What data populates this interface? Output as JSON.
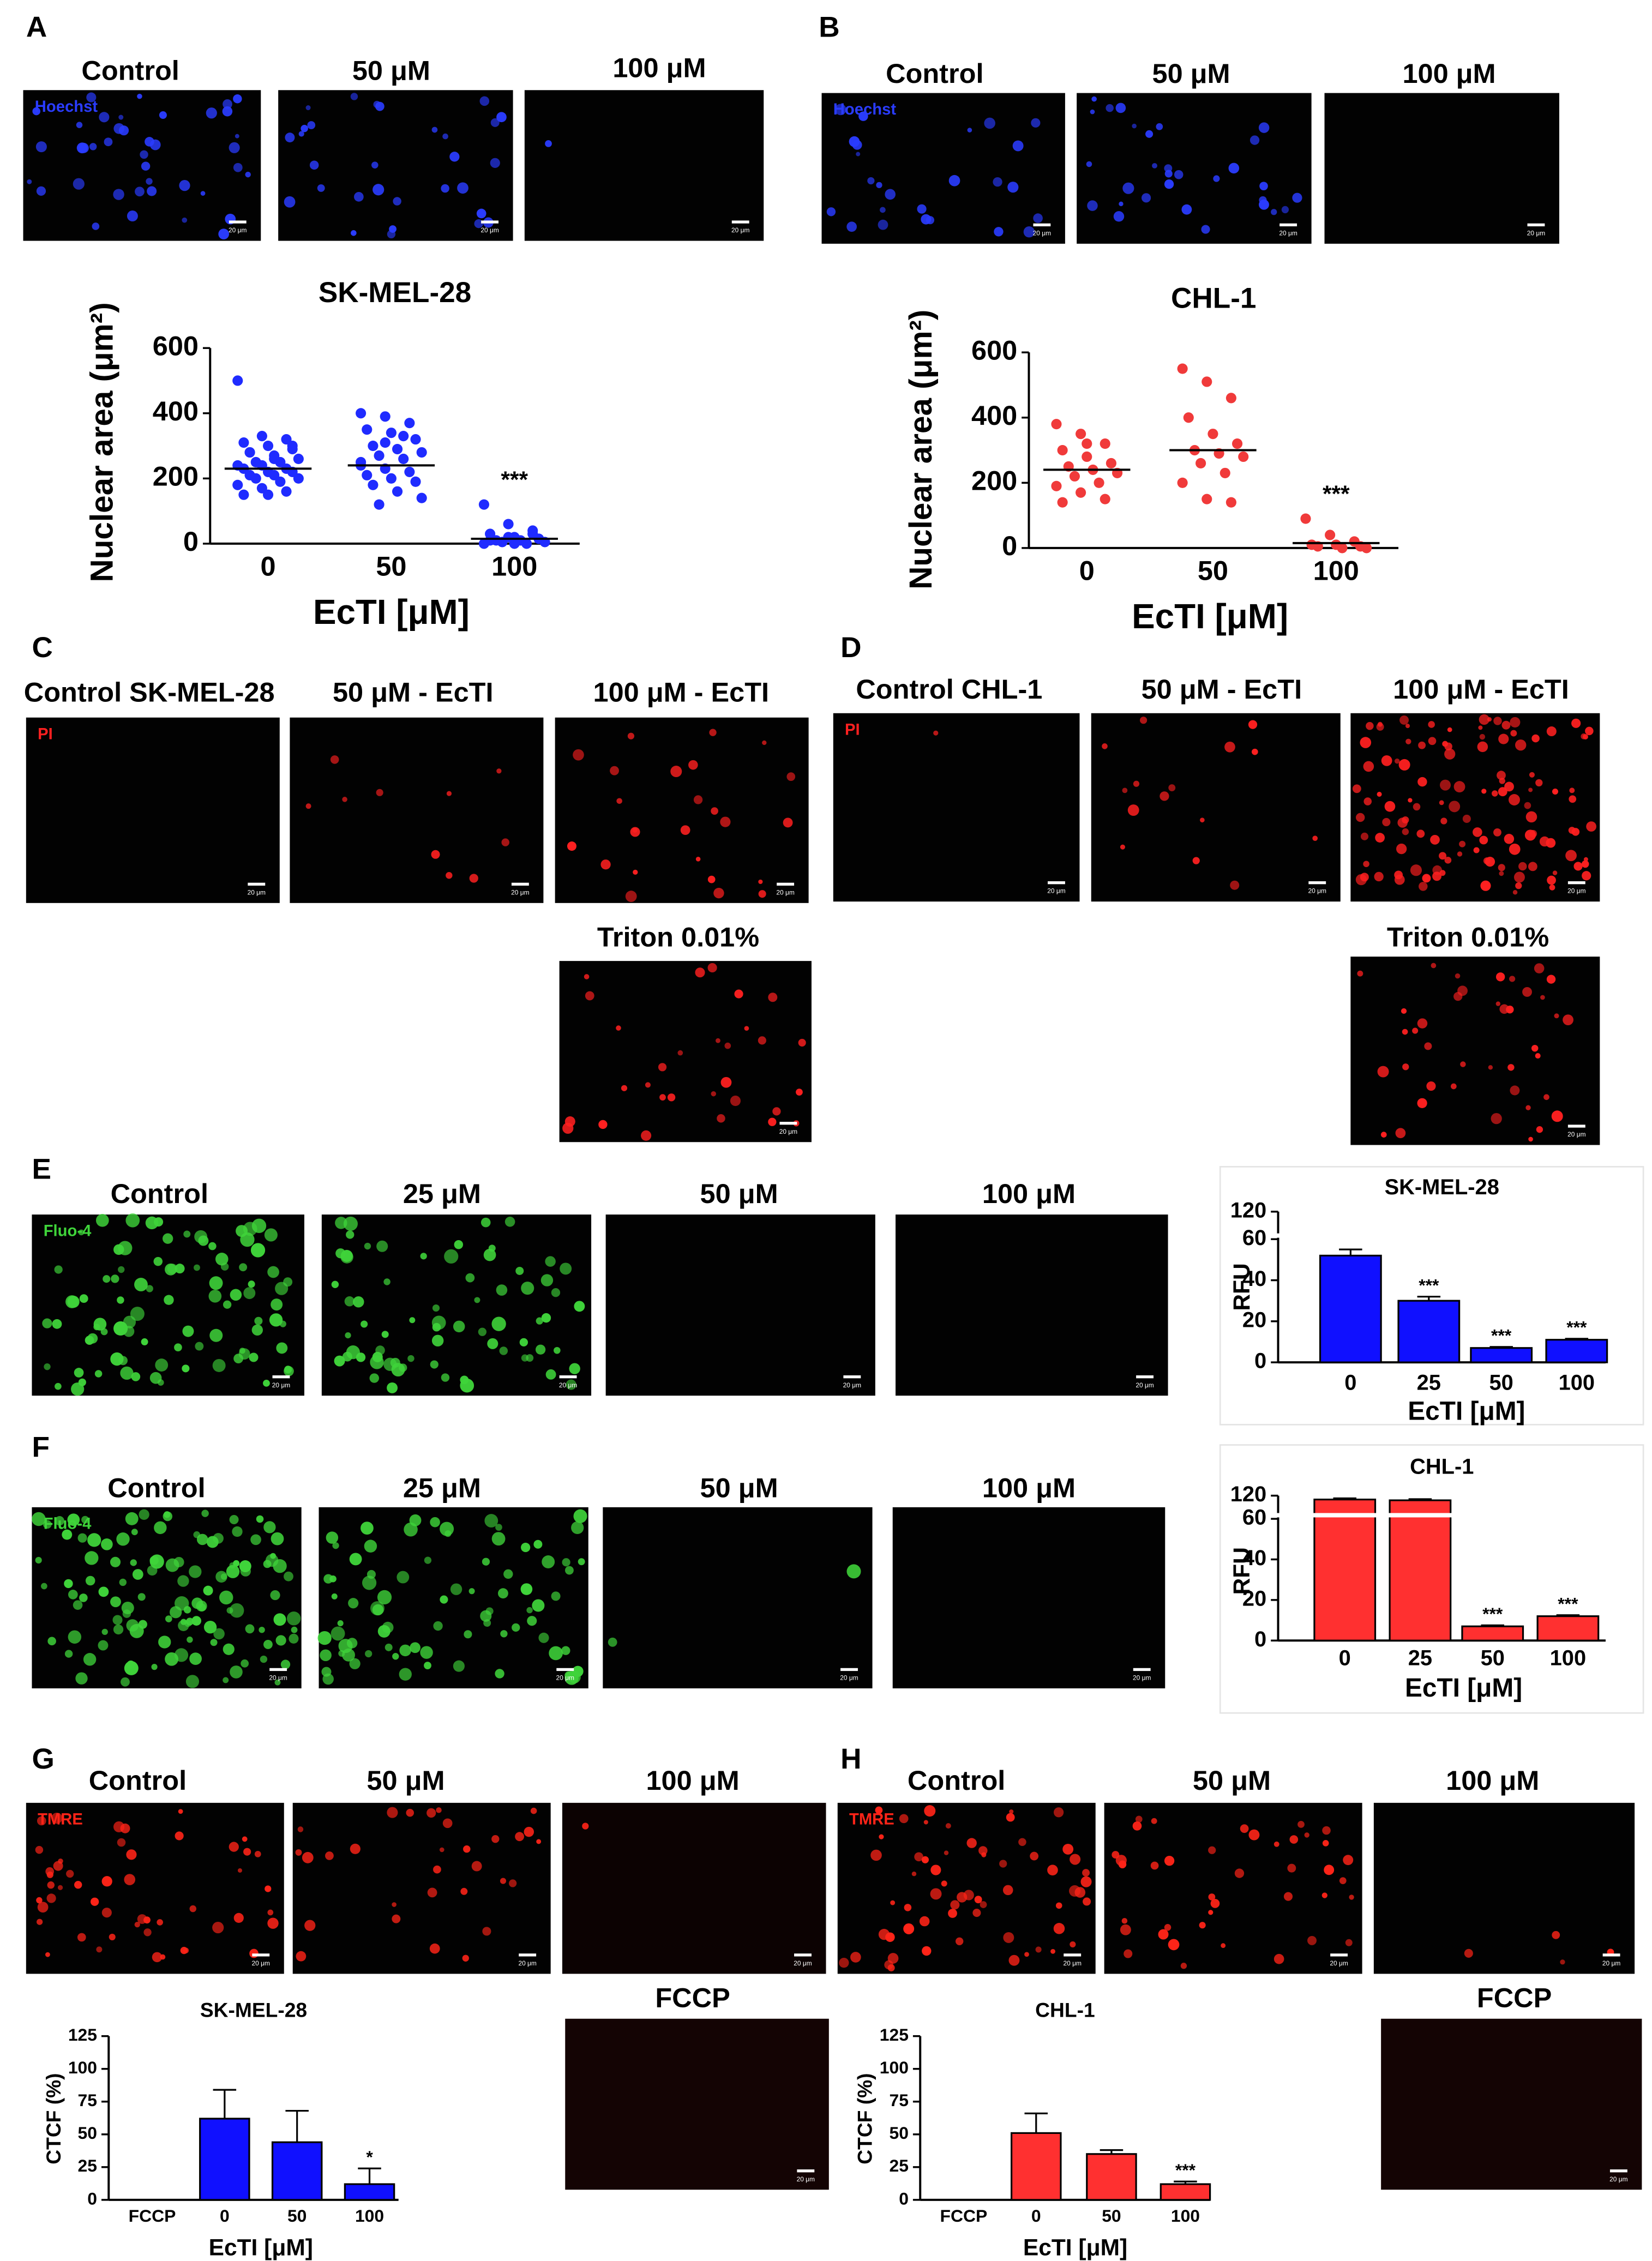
{
  "panel_letters": [
    "A",
    "B",
    "C",
    "D",
    "E",
    "F",
    "G",
    "H"
  ],
  "scale_bar": "20 μm",
  "images": [
    {
      "label": "Control",
      "channel": "Hoechst",
      "color": "#2a3cff"
    },
    {
      "label": "50 μM",
      "color": "#2a3cff"
    },
    {
      "label": "100 μM",
      "color": "#2a3cff"
    },
    {
      "label": "Control",
      "channel": "Hoechst",
      "color": "#2a3cff"
    },
    {
      "label": "50 μM",
      "color": "#2a3cff"
    },
    {
      "label": "100 μM",
      "color": "#2a3cff"
    },
    {
      "label": "Control SK-MEL-28",
      "channel": "PI",
      "color": "#ff2020"
    },
    {
      "label": "50 μM - EcTI",
      "color": "#ff2020"
    },
    {
      "label": "100 μM - EcTI",
      "color": "#ff2020"
    },
    {
      "label": "Triton 0.01%",
      "color": "#ff2020"
    },
    {
      "label": "Control CHL-1",
      "channel": "PI",
      "color": "#ff2020"
    },
    {
      "label": "50 μM - EcTI",
      "color": "#ff2020"
    },
    {
      "label": "100 μM - EcTI",
      "color": "#ff2020"
    },
    {
      "label": "Triton 0.01%",
      "color": "#ff2020"
    },
    {
      "label": "Control",
      "channel": "Fluo-4",
      "color": "#3fd43a"
    },
    {
      "label": "25 μM",
      "color": "#3fd43a"
    },
    {
      "label": "50 μM",
      "color": "#3fd43a"
    },
    {
      "label": "100 μM",
      "color": "#3fd43a"
    },
    {
      "label": "Control",
      "channel": "Fluo-4",
      "color": "#3fd43a"
    },
    {
      "label": "25 μM",
      "color": "#3fd43a"
    },
    {
      "label": "50 μM",
      "color": "#3fd43a"
    },
    {
      "label": "100 μM",
      "color": "#3fd43a"
    },
    {
      "label": "Control",
      "channel": "TMRE",
      "color": "#ff2418"
    },
    {
      "label": "50 μM",
      "color": "#ff2418"
    },
    {
      "label": "100 μM",
      "color": "#ff2418"
    },
    {
      "label": "FCCP",
      "color": "#ff2418"
    },
    {
      "label": "Control",
      "channel": "TMRE",
      "color": "#ff2418"
    },
    {
      "label": "50 μM",
      "color": "#ff2418"
    },
    {
      "label": "100 μM",
      "color": "#ff2418"
    },
    {
      "label": "FCCP",
      "color": "#ff2418"
    }
  ],
  "chart_data": [
    {
      "type": "dotplot",
      "title": "SK-MEL-28",
      "xlabel": "EcTI [μM]",
      "ylabel": "Nuclear area (μm²)",
      "color": "#1f2bff",
      "categories": [
        "0",
        "50",
        "100"
      ],
      "points": [
        [
          500,
          330,
          320,
          310,
          300,
          290,
          280,
          270,
          260,
          250,
          250,
          240,
          240,
          230,
          230,
          220,
          220,
          210,
          210,
          200,
          200,
          190,
          180,
          170,
          160,
          150,
          150,
          300,
          280,
          260
        ],
        [
          400,
          390,
          370,
          350,
          340,
          320,
          300,
          290,
          280,
          270,
          260,
          240,
          230,
          220,
          210,
          200,
          190,
          180,
          160,
          140,
          120,
          330,
          250,
          310
        ],
        [
          120,
          60,
          40,
          30,
          20,
          15,
          10,
          10,
          5,
          5,
          0,
          0,
          20,
          30,
          10,
          0
        ]
      ],
      "means": [
        230,
        240,
        15
      ],
      "annotations": [
        null,
        null,
        "***"
      ],
      "ylim": [
        0,
        600
      ],
      "yticks": [
        0,
        200,
        400,
        600
      ]
    },
    {
      "type": "dotplot",
      "title": "CHL-1",
      "xlabel": "EcTI [μM]",
      "ylabel": "Nuclear area (μm²)",
      "color": "#f03a3a",
      "categories": [
        "0",
        "50",
        "100"
      ],
      "points": [
        [
          380,
          350,
          320,
          300,
          280,
          260,
          250,
          240,
          230,
          220,
          200,
          190,
          170,
          150,
          140,
          320
        ],
        [
          550,
          510,
          460,
          400,
          350,
          320,
          300,
          290,
          280,
          260,
          230,
          200,
          150,
          140
        ],
        [
          90,
          40,
          20,
          10,
          10,
          5,
          5,
          0,
          0
        ]
      ],
      "means": [
        240,
        300,
        15
      ],
      "annotations": [
        null,
        null,
        "***"
      ],
      "ylim": [
        0,
        600
      ],
      "yticks": [
        0,
        200,
        400,
        600
      ]
    },
    {
      "type": "bar",
      "title": "SK-MEL-28",
      "xlabel": "EcTI [μM]",
      "ylabel": "RFU",
      "color": "#1010ff",
      "categories": [
        "0",
        "25",
        "50",
        "100"
      ],
      "values": [
        52,
        30,
        7,
        11
      ],
      "errors": [
        3,
        2,
        0.5,
        0.5
      ],
      "annotations": [
        null,
        "***",
        "***",
        "***"
      ],
      "ylim": [
        0,
        120
      ],
      "yticks": [
        0,
        20,
        40,
        60,
        120
      ],
      "axis_break": 60
    },
    {
      "type": "bar",
      "title": "CHL-1",
      "xlabel": "EcTI [μM]",
      "ylabel": "RFU",
      "color": "#ff3030",
      "categories": [
        "0",
        "25",
        "50",
        "100"
      ],
      "values": [
        110,
        108,
        7,
        12
      ],
      "errors": [
        3,
        3,
        0.5,
        0.5
      ],
      "annotations": [
        null,
        null,
        "***",
        "***"
      ],
      "ylim": [
        0,
        120
      ],
      "yticks": [
        0,
        20,
        40,
        60,
        120
      ],
      "axis_break": 60
    },
    {
      "type": "bar",
      "title": "SK-MEL-28",
      "xlabel": "EcTI [μM]",
      "ylabel": "CTCF (%)",
      "color": "#1010ff",
      "categories": [
        "FCCP",
        "0",
        "50",
        "100"
      ],
      "values": [
        0,
        62,
        44,
        12
      ],
      "errors": [
        0,
        22,
        24,
        12
      ],
      "annotations": [
        null,
        null,
        null,
        "*"
      ],
      "ylim": [
        0,
        125
      ],
      "yticks": [
        0,
        25,
        50,
        75,
        100,
        125
      ]
    },
    {
      "type": "bar",
      "title": "CHL-1",
      "xlabel": "EcTI [μM]",
      "ylabel": "CTCF (%)",
      "color": "#ff3030",
      "categories": [
        "FCCP",
        "0",
        "50",
        "100"
      ],
      "values": [
        0,
        51,
        35,
        12
      ],
      "errors": [
        0,
        15,
        3,
        2
      ],
      "annotations": [
        null,
        null,
        null,
        "***"
      ],
      "ylim": [
        0,
        125
      ],
      "yticks": [
        0,
        25,
        50,
        75,
        100,
        125
      ]
    }
  ]
}
